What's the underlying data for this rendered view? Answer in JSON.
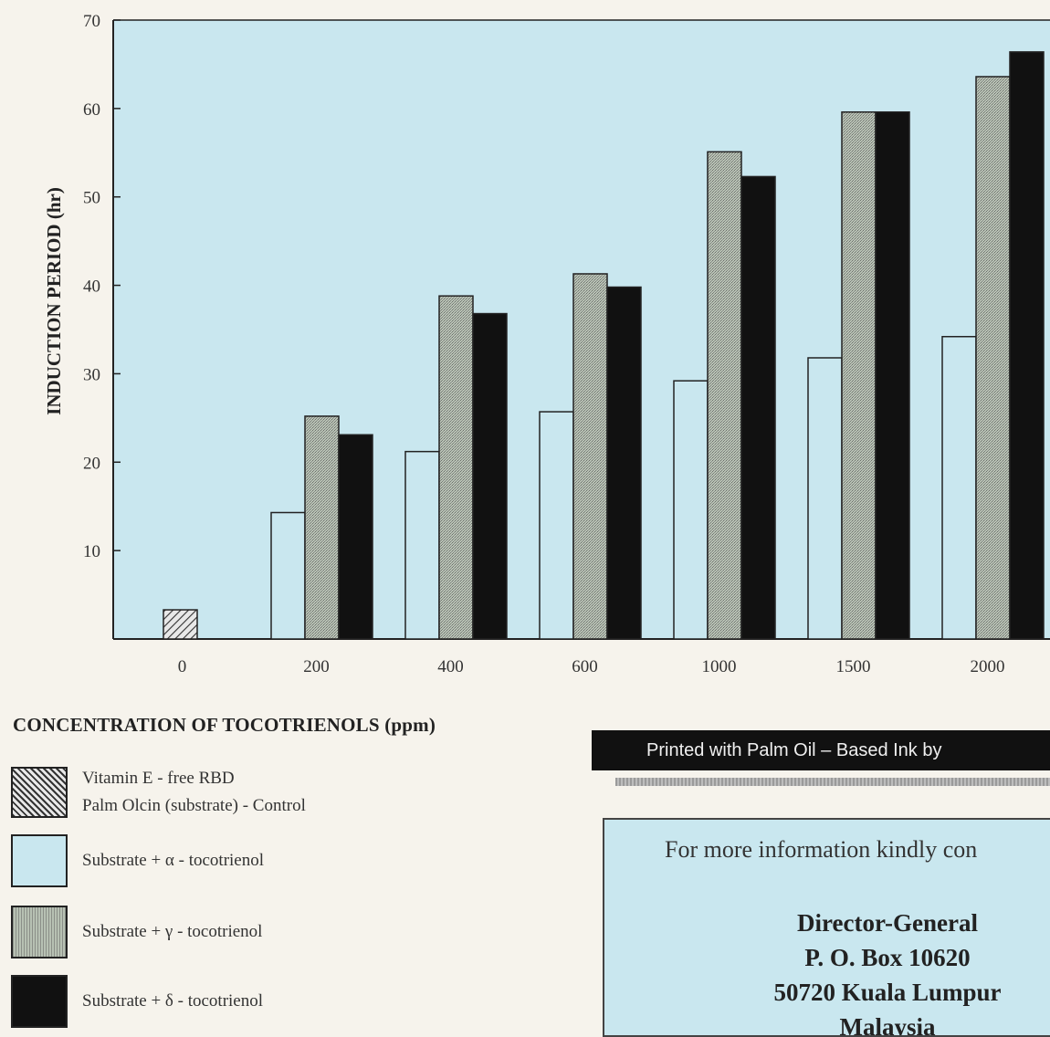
{
  "chart_data": {
    "type": "bar",
    "ylabel": "INDUCTION PERIOD (hr)",
    "xlabel": "CONCENTRATION OF TOCOTRIENOLS (ppm)",
    "categories": [
      "0",
      "200",
      "400",
      "600",
      "1000",
      "1500",
      "2000"
    ],
    "ylim": [
      0,
      70
    ],
    "yticks": [
      10,
      20,
      30,
      40,
      50,
      60,
      70
    ],
    "grid": false,
    "series": [
      {
        "name": "Vitamin E - free RBD Palm Olcin (substrate) - Control",
        "pattern": "hatch",
        "values": [
          3.3,
          null,
          null,
          null,
          null,
          null,
          null
        ]
      },
      {
        "name": "Substrate + α - tocotrienol",
        "pattern": "white",
        "values": [
          null,
          14.3,
          21.2,
          25.7,
          29.2,
          31.8,
          34.2
        ]
      },
      {
        "name": "Substrate + γ - tocotrienol",
        "pattern": "stipple",
        "values": [
          null,
          25.2,
          38.8,
          41.3,
          55.1,
          59.6,
          63.6
        ]
      },
      {
        "name": "Substrate + δ - tocotrienol",
        "pattern": "black",
        "values": [
          null,
          23.1,
          36.8,
          39.8,
          52.3,
          59.6,
          66.4
        ]
      }
    ],
    "background_color": "#c9e7ef"
  },
  "legend": {
    "control_line1": "Vitamin  E - free RBD",
    "control_line2": "Palm Olcin (substrate) - Control",
    "alpha": "Substrate + α - tocotrienol",
    "gamma": "Substrate +  γ - tocotrienol",
    "delta": "Substrate + δ - tocotrienol"
  },
  "banner": {
    "text": "Printed with Palm Oil – Based Ink by"
  },
  "info": {
    "intro": "For more information kindly con",
    "line1": "Director-General",
    "line2": "P. O. Box 10620",
    "line3": "50720 Kuala Lumpur",
    "line4": "Malaysia"
  },
  "colors": {
    "panel": "#c9e7ef",
    "ink": "#111111",
    "paper": "#f6f3ec"
  }
}
